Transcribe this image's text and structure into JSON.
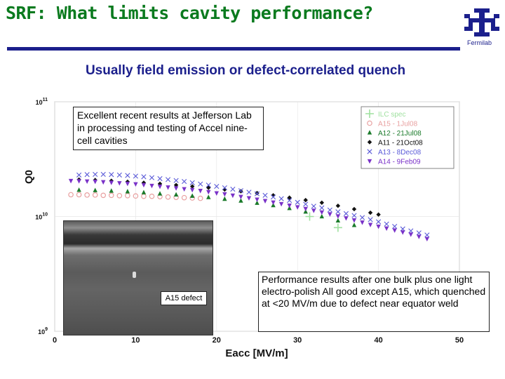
{
  "slide": {
    "title": "SRF: What limits cavity performance?",
    "subtitle": "Usually field emission or defect-correlated quench",
    "logo_text": "Fermilab",
    "accent_color": "#0a7a1e",
    "rule_color": "#1b1f8c"
  },
  "callout_top": "Excellent recent results at Jefferson Lab in processing and testing of Accel nine-cell cavities",
  "photo": {
    "label": "A15 defect"
  },
  "note": "Performance results after one bulk plus one light electro-polish All good except A15, which quenched at <20 MV/m due to defect near equator weld",
  "chart_data": {
    "type": "scatter",
    "xlabel": "Eacc [MV/m]",
    "ylabel": "Q0",
    "xlim": [
      0,
      50
    ],
    "ylim": [
      1000000000.0,
      100000000000.0
    ],
    "y_scale": "log",
    "x_ticks": [
      0,
      10,
      20,
      30,
      40,
      50
    ],
    "y_ticks": [
      {
        "v": 1000000000.0,
        "base": "10",
        "exp": "9"
      },
      {
        "v": 10000000000.0,
        "base": "10",
        "exp": "10"
      },
      {
        "v": 100000000000.0,
        "base": "10",
        "exp": "11"
      }
    ],
    "legend_position": "top-right",
    "series": [
      {
        "name": "ILC spec",
        "marker": "plus",
        "color": "#9fe09f",
        "x": [
          31.5,
          35
        ],
        "y": [
          10000000000.0,
          8000000000.0
        ]
      },
      {
        "name": "A15 - 1Jul08",
        "marker": "circle",
        "color": "#e8a0a0",
        "x": [
          2,
          3,
          4,
          5,
          6,
          7,
          8,
          9,
          10,
          11,
          12,
          13,
          14,
          15,
          16,
          17,
          18
        ],
        "y": [
          15500000000.0,
          15500000000.0,
          15400000000.0,
          15400000000.0,
          15300000000.0,
          15300000000.0,
          15200000000.0,
          15200000000.0,
          15100000000.0,
          15000000000.0,
          15000000000.0,
          14900000000.0,
          14800000000.0,
          14700000000.0,
          14600000000.0,
          14500000000.0,
          14400000000.0
        ]
      },
      {
        "name": "A12 - 21Jul08",
        "marker": "triangle",
        "color": "#1a7a2a",
        "x": [
          3,
          5,
          7,
          9,
          11,
          13,
          15,
          17,
          19,
          21,
          23,
          25,
          27,
          29,
          31,
          33,
          35,
          37
        ],
        "y": [
          17000000000.0,
          16900000000.0,
          16700000000.0,
          16500000000.0,
          16200000000.0,
          15800000000.0,
          15500000000.0,
          15100000000.0,
          14700000000.0,
          14200000000.0,
          13700000000.0,
          13100000000.0,
          12500000000.0,
          11800000000.0,
          11000000000.0,
          10000000000.0,
          9200000000.0,
          8400000000.0
        ]
      },
      {
        "name": "A11 - 21Oct08",
        "marker": "diamond",
        "color": "#111111",
        "x": [
          3,
          5,
          7,
          9,
          11,
          13,
          15,
          17,
          19,
          21,
          23,
          25,
          27,
          29,
          31,
          33,
          35,
          37,
          39,
          40
        ],
        "y": [
          21000000000.0,
          20800000000.0,
          20500000000.0,
          20100000000.0,
          19700000000.0,
          19300000000.0,
          18800000000.0,
          18300000000.0,
          17800000000.0,
          17200000000.0,
          16600000000.0,
          16000000000.0,
          15300000000.0,
          14600000000.0,
          13900000000.0,
          13200000000.0,
          12400000000.0,
          11600000000.0,
          10800000000.0,
          10400000000.0
        ]
      },
      {
        "name": "A13 - 8Dec08",
        "marker": "x",
        "color": "#5a5ad8",
        "x": [
          3,
          4,
          5,
          6,
          7,
          8,
          9,
          10,
          11,
          12,
          13,
          14,
          15,
          16,
          17,
          18,
          19,
          20,
          21,
          22,
          23,
          24,
          25,
          26,
          27,
          28,
          29,
          30,
          31,
          32,
          33,
          34,
          35,
          36,
          37,
          38,
          39,
          40,
          41,
          42,
          43,
          44,
          45,
          46
        ],
        "y": [
          23000000000.0,
          23200000000.0,
          23300000000.0,
          23300000000.0,
          23200000000.0,
          23000000000.0,
          22800000000.0,
          22500000000.0,
          22200000000.0,
          21800000000.0,
          21400000000.0,
          21000000000.0,
          20600000000.0,
          20200000000.0,
          19700000000.0,
          19200000000.0,
          18800000000.0,
          18300000000.0,
          17800000000.0,
          17300000000.0,
          16800000000.0,
          16300000000.0,
          15800000000.0,
          15300000000.0,
          14800000000.0,
          14300000000.0,
          13800000000.0,
          13300000000.0,
          12800000000.0,
          12300000000.0,
          11900000000.0,
          11400000000.0,
          11000000000.0,
          10600000000.0,
          10200000000.0,
          9800000000.0,
          9400000000.0,
          9000000000.0,
          8600000000.0,
          8200000000.0,
          7800000000.0,
          7500000000.0,
          7200000000.0,
          6900000000.0
        ]
      },
      {
        "name": "A14 - 9Feb09",
        "marker": "triangle-down",
        "color": "#7a32c8",
        "x": [
          2,
          3,
          4,
          5,
          6,
          7,
          8,
          9,
          10,
          11,
          12,
          13,
          14,
          15,
          16,
          17,
          18,
          19,
          20,
          21,
          22,
          23,
          24,
          25,
          26,
          27,
          28,
          29,
          30,
          31,
          32,
          33,
          34,
          35,
          36,
          37,
          38,
          39,
          40,
          41,
          42,
          43,
          44,
          45,
          46
        ],
        "y": [
          20500000000.0,
          20400000000.0,
          20300000000.0,
          20200000000.0,
          20000000000.0,
          19800000000.0,
          19600000000.0,
          19400000000.0,
          19200000000.0,
          18900000000.0,
          18600000000.0,
          18300000000.0,
          18000000000.0,
          17700000000.0,
          17400000000.0,
          17100000000.0,
          16800000000.0,
          16400000000.0,
          16000000000.0,
          15700000000.0,
          15300000000.0,
          14900000000.0,
          14500000000.0,
          14100000000.0,
          13700000000.0,
          13300000000.0,
          12900000000.0,
          12500000000.0,
          12100000000.0,
          11700000000.0,
          11300000000.0,
          10900000000.0,
          10500000000.0,
          10100000000.0,
          9700000000.0,
          9300000000.0,
          8900000000.0,
          8500000000.0,
          8200000000.0,
          7900000000.0,
          7600000000.0,
          7300000000.0,
          7000000000.0,
          6700000000.0,
          6400000000.0
        ]
      }
    ]
  }
}
